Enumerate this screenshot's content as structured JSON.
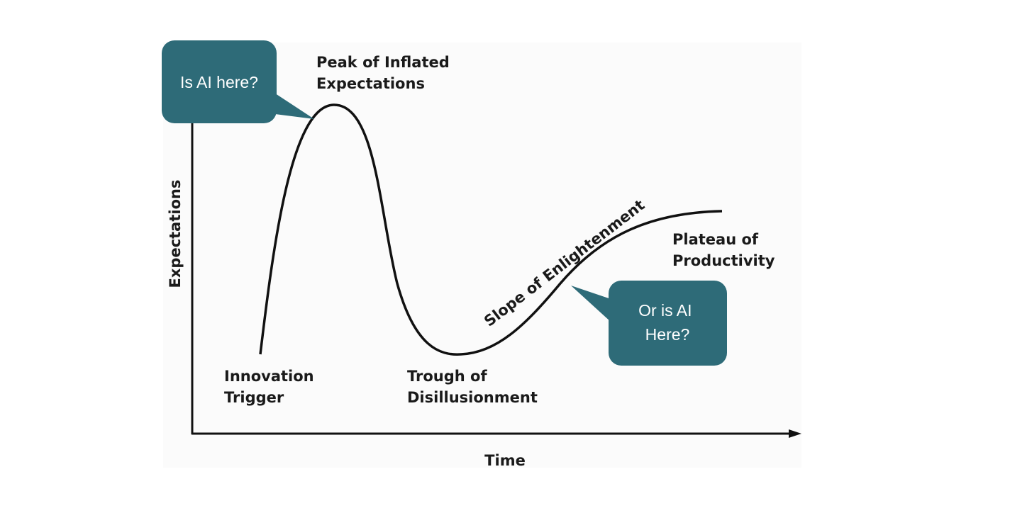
{
  "axes": {
    "y": "Expectations",
    "x": "Time"
  },
  "phases": [
    {
      "lines": [
        "Innovation",
        "Trigger"
      ]
    },
    {
      "lines": [
        "Peak of Inflated",
        "Expectations"
      ]
    },
    {
      "lines": [
        "Trough of",
        "Disillusionment"
      ]
    },
    {
      "lines": [
        "Slope of Enlightenment"
      ]
    },
    {
      "lines": [
        "Plateau of",
        "Productivity"
      ]
    }
  ],
  "callouts": [
    {
      "lines": [
        "Is AI here?"
      ]
    },
    {
      "lines": [
        "Or is AI",
        "Here?"
      ]
    }
  ]
}
